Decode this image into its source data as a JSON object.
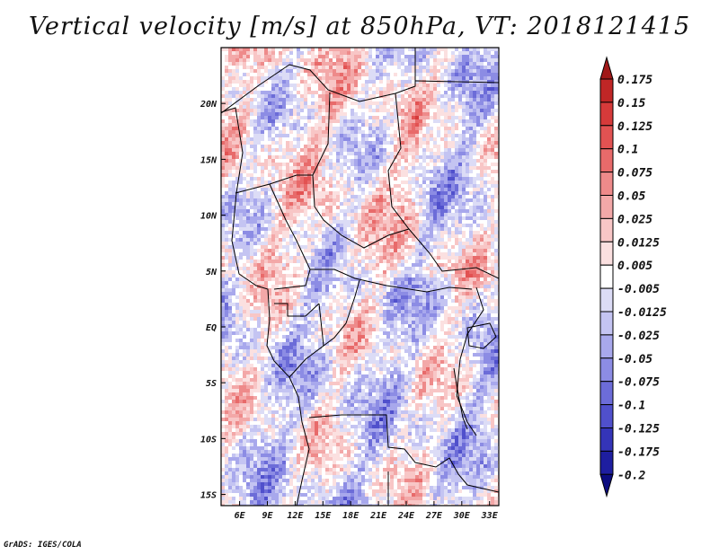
{
  "chart_data": {
    "type": "heatmap",
    "title": "Vertical velocity [m/s] at 850hPa, VT: 2018121415",
    "variable": "Vertical velocity",
    "units": "m/s",
    "level": "850hPa",
    "valid_time": "2018121415",
    "x_axis": {
      "range": [
        4,
        34
      ],
      "ticks": [
        6,
        9,
        12,
        15,
        18,
        21,
        24,
        27,
        30,
        33
      ],
      "tick_labels": [
        "6E",
        "9E",
        "12E",
        "15E",
        "18E",
        "21E",
        "24E",
        "27E",
        "30E",
        "33E"
      ]
    },
    "y_axis": {
      "range": [
        -16,
        25
      ],
      "ticks": [
        -15,
        -10,
        -5,
        0,
        5,
        10,
        15,
        20
      ],
      "tick_labels": [
        "15S",
        "10S",
        "5S",
        "EQ",
        "5N",
        "10N",
        "15N",
        "20N"
      ]
    },
    "colorbar": {
      "levels": [
        0.175,
        0.15,
        0.125,
        0.1,
        0.075,
        0.05,
        0.025,
        0.0125,
        0.005,
        -0.005,
        -0.0125,
        -0.025,
        -0.05,
        -0.075,
        -0.1,
        -0.125,
        -0.175,
        -0.2
      ],
      "labels": [
        "0.175",
        "0.15",
        "0.125",
        "0.1",
        "0.075",
        "0.05",
        "0.025",
        "0.0125",
        "0.005",
        "-0.005",
        "-0.0125",
        "-0.025",
        "-0.05",
        "-0.075",
        "-0.1",
        "-0.125",
        "-0.175",
        "-0.2"
      ],
      "colors": [
        "#a01818",
        "#c02626",
        "#d63a3a",
        "#e25252",
        "#e86a6a",
        "#ee8a8a",
        "#f3a8a8",
        "#f8c6c6",
        "#fbe0e0",
        "#ffffff",
        "#dcdcf6",
        "#c4c4f2",
        "#a8a8ec",
        "#8c8ce4",
        "#6c6cd8",
        "#5050cc",
        "#3434b8",
        "#1e1ea0",
        "#0c0c80"
      ]
    }
  },
  "footer": "GrADS: IGES/COLA"
}
